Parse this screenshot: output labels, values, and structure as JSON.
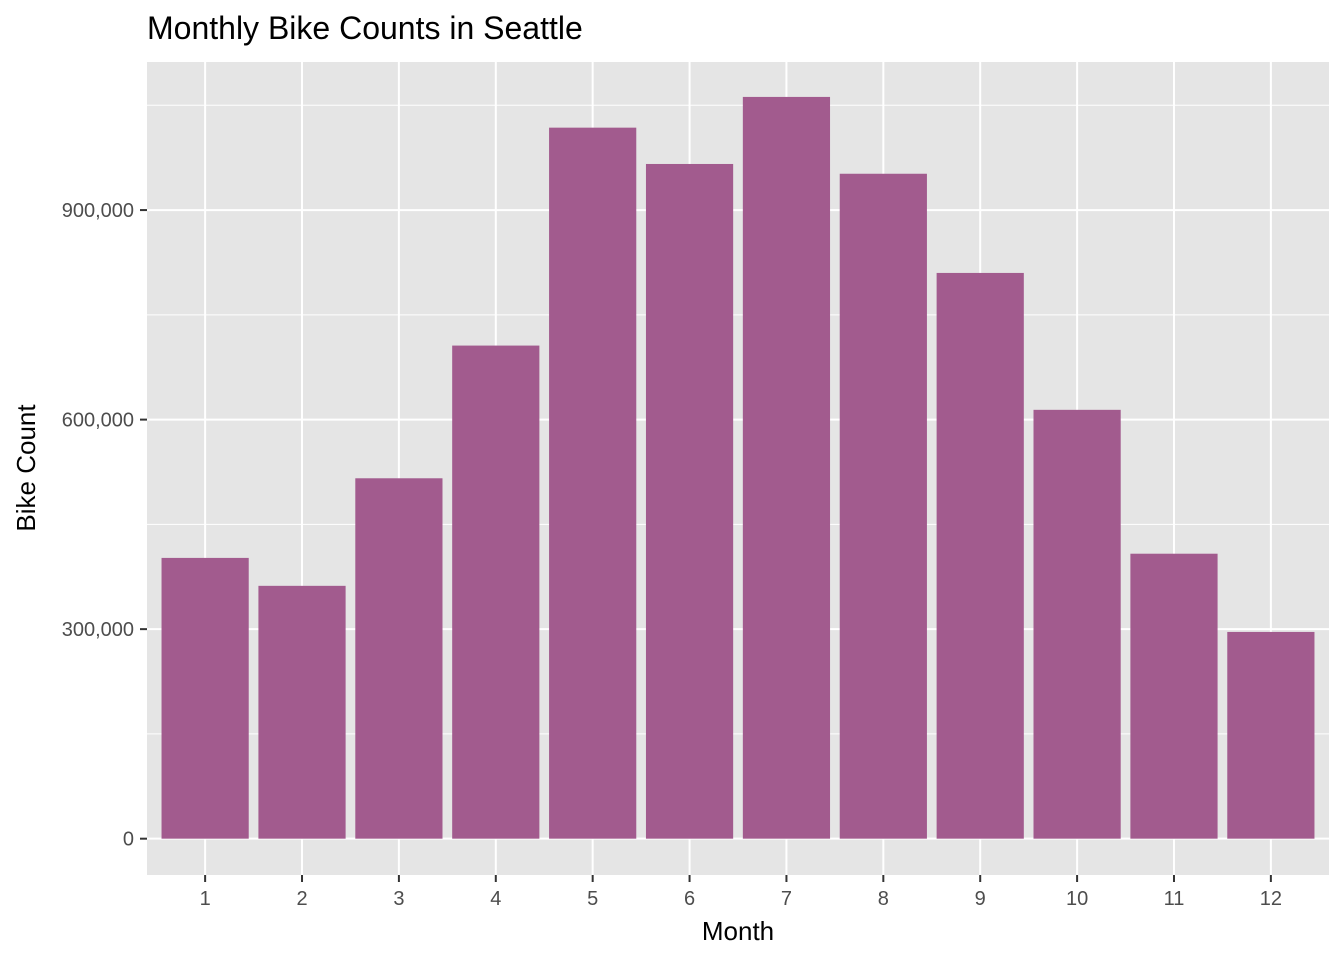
{
  "chart_data": {
    "type": "bar",
    "title": "Monthly Bike Counts in Seattle",
    "xlabel": "Month",
    "ylabel": "Bike Count",
    "categories": [
      "1",
      "2",
      "3",
      "4",
      "5",
      "6",
      "7",
      "8",
      "9",
      "10",
      "11",
      "12"
    ],
    "values": [
      402000,
      362000,
      516000,
      706000,
      1018000,
      966000,
      1062000,
      952000,
      810000,
      614000,
      408000,
      296000
    ],
    "ylim": [
      -52000,
      1112000
    ],
    "y_ticks": [
      0,
      300000,
      600000,
      900000
    ],
    "y_tick_labels": [
      "0",
      "300,000",
      "600,000",
      "900,000"
    ],
    "grid": true,
    "legend": "none",
    "colors": {
      "bar": "#a25b8e",
      "panel": "#e5e5e5",
      "grid": "#ffffff",
      "tick_text": "#4d4d4d",
      "tick_mark": "#333333"
    }
  }
}
